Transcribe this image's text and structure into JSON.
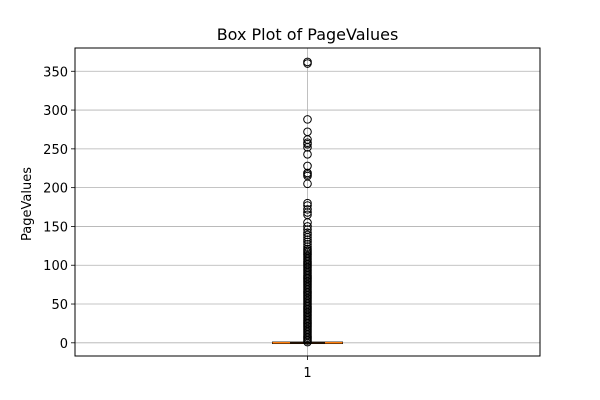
{
  "chart_data": {
    "type": "box",
    "title": "Box Plot of PageValues",
    "xlabel": "",
    "ylabel": "PageValues",
    "categories": [
      "1"
    ],
    "ylim": [
      -17,
      380
    ],
    "yticks": [
      0,
      50,
      100,
      150,
      200,
      250,
      300,
      350
    ],
    "grid": true,
    "box": {
      "q1": 0,
      "median": 0,
      "q3": 0,
      "whisker_low": 0,
      "whisker_high": 0
    },
    "fliers": [
      362,
      360,
      288,
      272,
      262,
      258,
      256,
      252,
      243,
      228,
      219,
      217,
      215,
      205,
      180,
      177,
      172,
      168,
      165,
      155,
      150,
      146,
      142,
      139,
      136,
      133,
      130,
      127,
      124,
      121,
      119,
      117,
      115,
      113,
      111,
      109,
      107,
      105,
      103,
      101,
      99,
      97,
      95,
      93,
      91,
      89,
      87,
      85,
      83,
      81,
      79,
      77,
      75,
      73,
      71,
      69,
      67,
      65,
      63,
      61,
      59,
      57,
      55,
      53,
      51,
      49,
      47,
      45,
      43,
      41,
      39,
      37,
      35,
      33,
      31,
      29,
      27,
      25,
      23,
      21,
      19,
      17,
      15,
      13,
      11,
      9,
      7,
      5,
      3,
      1
    ],
    "colors": {
      "median": "#ff7f0e",
      "box": "#000000",
      "flier": "#000000",
      "grid": "#b0b0b0"
    }
  }
}
